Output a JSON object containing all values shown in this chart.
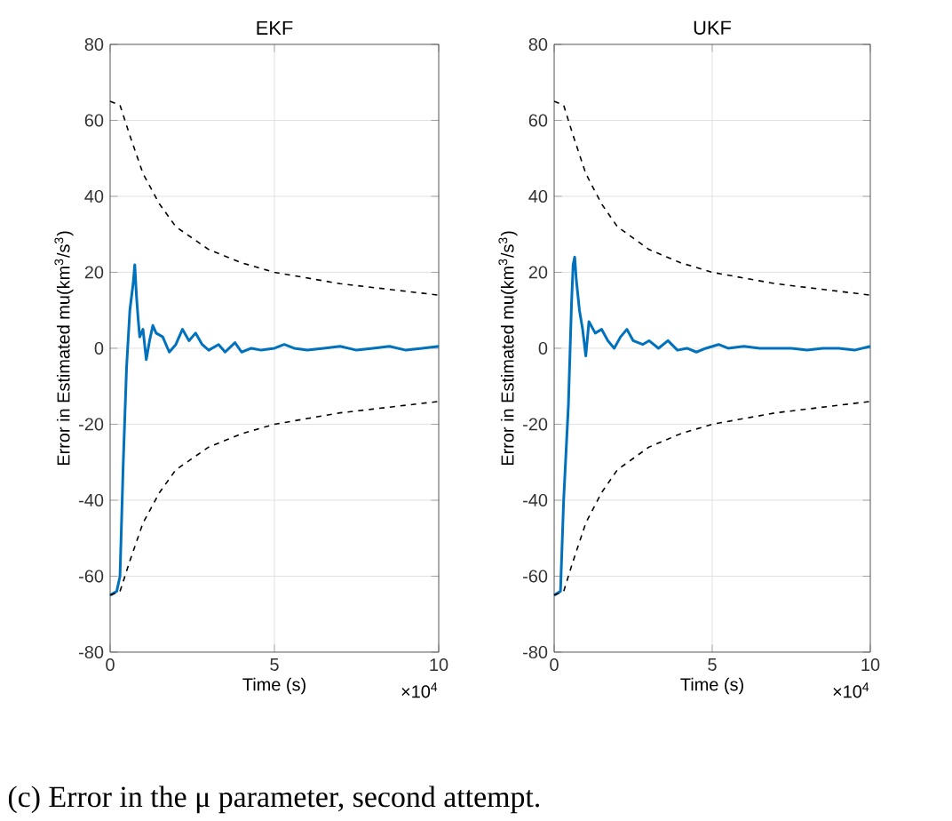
{
  "chart_data": [
    {
      "type": "line",
      "title": "EKF",
      "xlabel": "Time (s)",
      "ylabel": "Error in Estimated mu(km$^{3}$/s$^{3}$)",
      "xlim": [
        0,
        10
      ],
      "ylim": [
        -80,
        80
      ],
      "xticks": [
        0,
        5,
        10
      ],
      "yticks": [
        -80,
        -60,
        -40,
        -20,
        0,
        20,
        40,
        60,
        80
      ],
      "grid": true,
      "annotations": [
        "×10$^{4}$"
      ],
      "series": [
        {
          "color": "#0072bd",
          "line_style": "solid",
          "x": [
            0,
            0.2,
            0.3,
            0.4,
            0.5,
            0.6,
            0.7,
            0.75,
            0.8,
            0.85,
            0.9,
            1.0,
            1.1,
            1.2,
            1.3,
            1.4,
            1.6,
            1.8,
            2.0,
            2.2,
            2.4,
            2.6,
            2.8,
            3.0,
            3.3,
            3.5,
            3.8,
            4.0,
            4.3,
            4.6,
            5.0,
            5.3,
            5.6,
            6.0,
            6.5,
            7,
            7.5,
            8,
            8.5,
            9,
            9.5,
            10
          ],
          "values": [
            -65,
            -64,
            -60,
            -30,
            -5,
            10,
            17,
            22,
            14,
            8,
            3,
            5,
            -3,
            2,
            6,
            4,
            3,
            -1,
            1,
            5,
            2,
            4,
            1,
            -0.5,
            1,
            -1,
            1.5,
            -1,
            0,
            -0.5,
            0,
            1,
            0,
            -0.5,
            0,
            0.5,
            -0.5,
            0,
            0.5,
            -0.5,
            0,
            0.5
          ]
        },
        {
          "color": "#000000",
          "line_style": "dashed",
          "x": [
            0,
            0.3,
            0.6,
            1,
            1.5,
            2,
            3,
            4,
            5,
            6,
            7,
            8,
            9,
            10
          ],
          "values": [
            65,
            64,
            56,
            46,
            38,
            32,
            26,
            22.5,
            20,
            18.5,
            17,
            16,
            15,
            14
          ]
        },
        {
          "color": "#000000",
          "line_style": "dashed",
          "x": [
            0,
            0.3,
            0.6,
            1,
            1.5,
            2,
            3,
            4,
            5,
            6,
            7,
            8,
            9,
            10
          ],
          "values": [
            -65,
            -64,
            -56,
            -46,
            -38,
            -32,
            -26,
            -22.5,
            -20,
            -18.5,
            -17,
            -16,
            -15,
            -14
          ]
        }
      ]
    },
    {
      "type": "line",
      "title": "UKF",
      "xlabel": "Time (s)",
      "ylabel": "Error in Estimated mu(km$^{3}$/s$^{3}$)",
      "xlim": [
        0,
        10
      ],
      "ylim": [
        -80,
        80
      ],
      "xticks": [
        0,
        5,
        10
      ],
      "yticks": [
        -80,
        -60,
        -40,
        -20,
        0,
        20,
        40,
        60,
        80
      ],
      "grid": true,
      "annotations": [
        "×10$^{4}$",
        "(c) Error in the μ parameter, second attempt."
      ],
      "series": [
        {
          "color": "#0072bd",
          "line_style": "solid",
          "x": [
            0,
            0.2,
            0.3,
            0.45,
            0.55,
            0.6,
            0.65,
            0.7,
            0.8,
            0.9,
            1.0,
            1.1,
            1.3,
            1.5,
            1.7,
            1.9,
            2.1,
            2.3,
            2.5,
            2.8,
            3.0,
            3.3,
            3.6,
            3.9,
            4.2,
            4.5,
            4.8,
            5.2,
            5.5,
            6,
            6.5,
            7,
            7.5,
            8,
            8.5,
            9,
            9.5,
            10
          ],
          "values": [
            -65,
            -64,
            -40,
            -15,
            12,
            22,
            24,
            18,
            10,
            5,
            -2,
            7,
            4,
            5,
            2,
            0,
            3,
            5,
            2,
            1,
            2,
            0,
            2,
            -0.5,
            0,
            -1,
            0,
            1,
            0,
            0.5,
            0,
            0,
            0,
            -0.5,
            0,
            0,
            -0.5,
            0.5
          ]
        },
        {
          "color": "#000000",
          "line_style": "dashed",
          "x": [
            0,
            0.3,
            0.6,
            1,
            1.5,
            2,
            3,
            4,
            5,
            6,
            7,
            8,
            9,
            10
          ],
          "values": [
            65,
            64,
            56,
            46,
            38,
            32,
            26,
            22.5,
            20,
            18.5,
            17,
            16,
            15,
            14
          ]
        },
        {
          "color": "#000000",
          "line_style": "dashed",
          "x": [
            0,
            0.3,
            0.6,
            1,
            1.5,
            2,
            3,
            4,
            5,
            6,
            7,
            8,
            9,
            10
          ],
          "values": [
            -65,
            -64,
            -56,
            -46,
            -38,
            -32,
            -26,
            -22.5,
            -20,
            -18.5,
            -17,
            -16,
            -15,
            -14
          ]
        }
      ]
    }
  ]
}
